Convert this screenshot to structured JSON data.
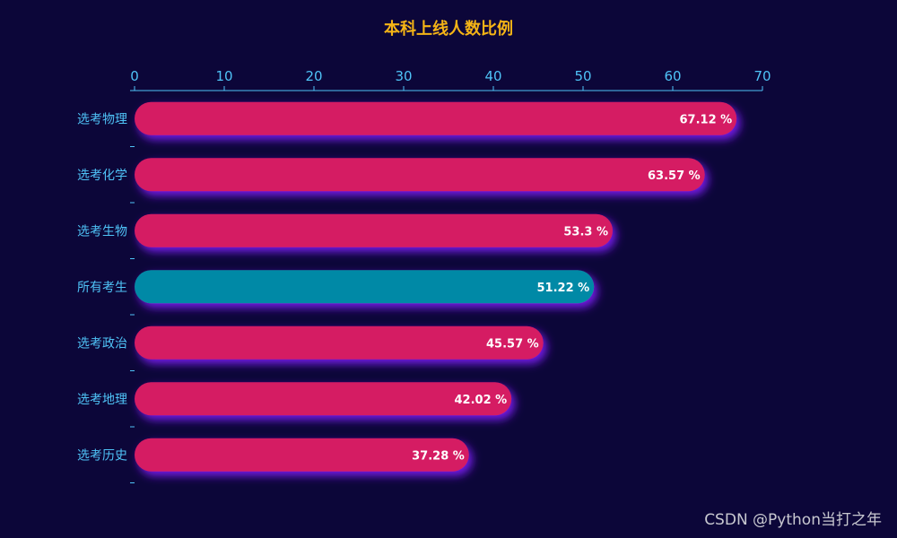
{
  "chart_data": {
    "type": "bar",
    "orientation": "horizontal",
    "title": "本科上线人数比例",
    "categories": [
      "选考物理",
      "选考化学",
      "选考生物",
      "所有考生",
      "选考政治",
      "选考地理",
      "选考历史"
    ],
    "values": [
      67.12,
      63.57,
      53.3,
      51.22,
      45.57,
      42.02,
      37.28
    ],
    "value_labels": [
      "67.12 %",
      "63.57 %",
      "53.3 %",
      "51.22 %",
      "45.57 %",
      "42.02 %",
      "37.28 %"
    ],
    "highlight_category": "所有考生",
    "xlim": [
      0,
      70
    ],
    "x_ticks": [
      "0",
      "10",
      "20",
      "30",
      "40",
      "50",
      "60",
      "70"
    ],
    "x_axis_position": "top",
    "grid": false,
    "legend": "none"
  },
  "colors": {
    "background": "#0c0639",
    "title": "#f5b416",
    "axis": "#4fc3f7",
    "bar": "#d51a63",
    "bar_highlight": "#0289a6",
    "bar_shadow": "#7c1cf2",
    "bar_label": "#ffffff"
  },
  "watermark": "CSDN @Python当打之年"
}
